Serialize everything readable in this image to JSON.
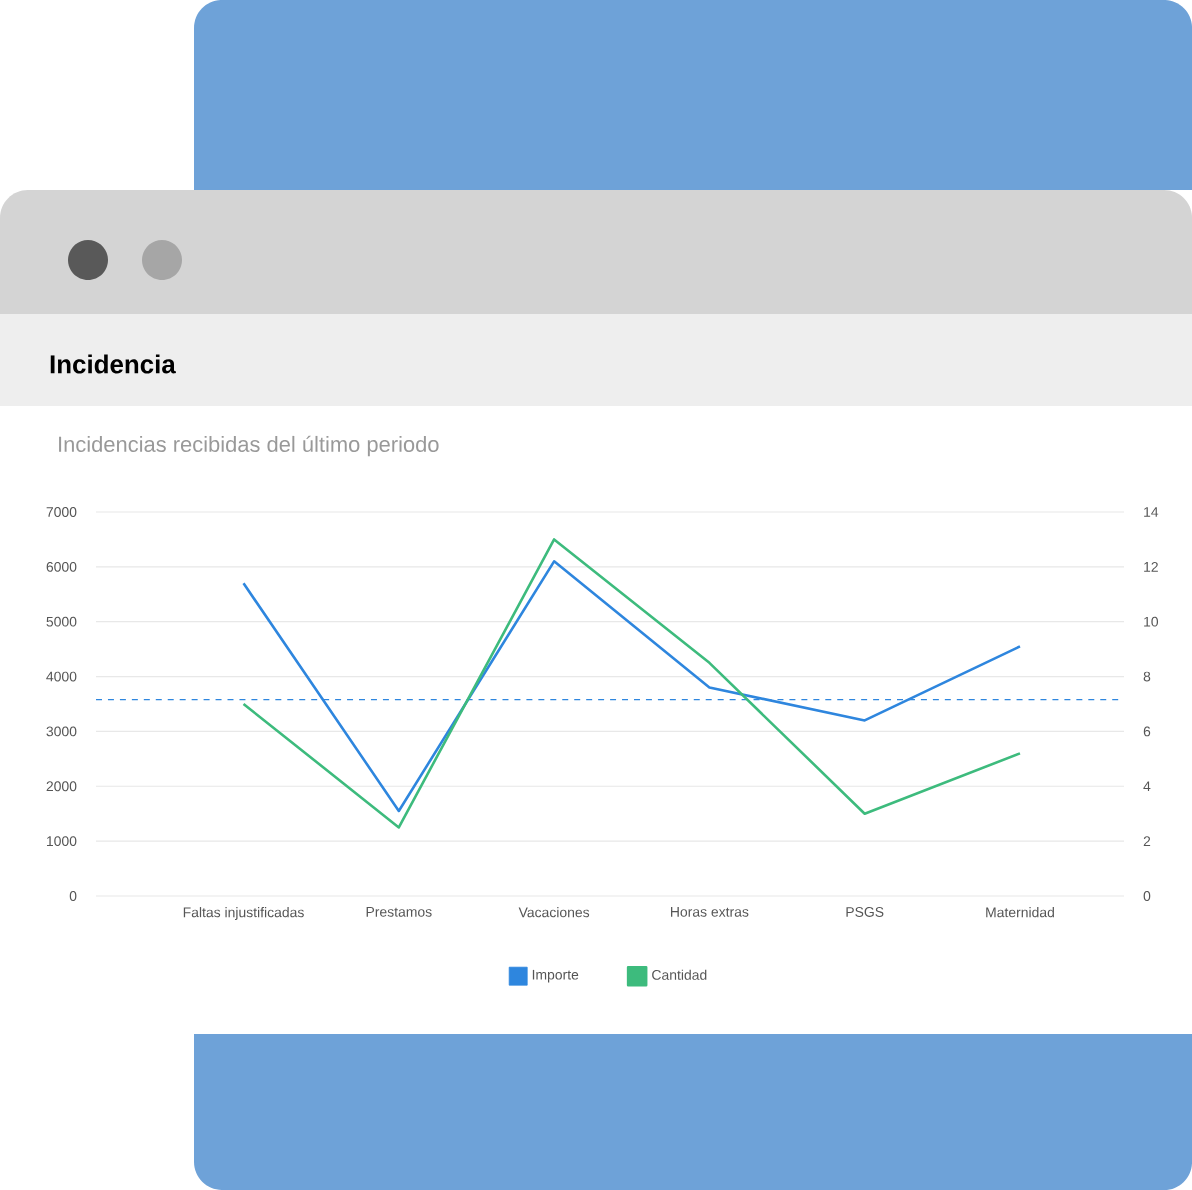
{
  "chart_data": {
    "type": "line",
    "title": "Incidencia",
    "subtitle": "Incidencias recibidas del último periodo",
    "categories": [
      "Faltas injustificadas",
      "Prestamos",
      "Vacaciones",
      "Horas extras",
      "PSGS",
      "Maternidad"
    ],
    "series": [
      {
        "name": "Importe",
        "color": "#2e86de",
        "values": [
          5700,
          1550,
          6100,
          3800,
          3200,
          4550
        ]
      },
      {
        "name": "Cantidad",
        "color": "#3dbb7d",
        "axis": "y2",
        "values": [
          7,
          2.5,
          13,
          8.5,
          3,
          5.2
        ]
      }
    ],
    "ylim": [
      0,
      7000
    ],
    "yticks": [
      0,
      1000,
      2000,
      3000,
      4000,
      5000,
      6000,
      7000
    ],
    "y2lim": [
      0,
      14
    ],
    "y2ticks": [
      0,
      2,
      4,
      6,
      8,
      10,
      12,
      14
    ],
    "ref_lines": [
      {
        "axis": "y",
        "value": 3580,
        "color": "#2e86de",
        "line_style": "dashed"
      }
    ],
    "grid": "y",
    "legend": "bottom",
    "marker": "none",
    "line_style": "solid"
  }
}
